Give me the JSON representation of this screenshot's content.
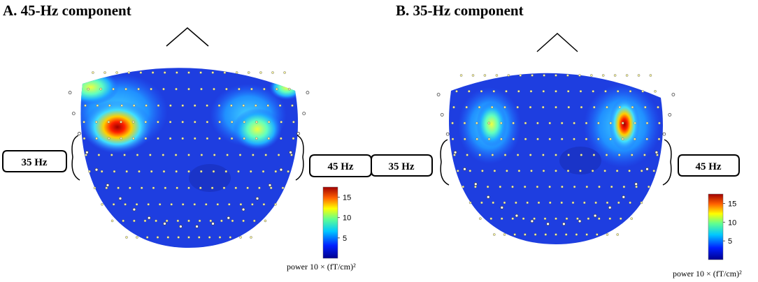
{
  "panels": [
    {
      "title": "A. 45-Hz component",
      "left_label": "35 Hz",
      "right_label": "45 Hz",
      "colorbar": {
        "range": [
          0,
          17.5
        ],
        "ticks": [
          5,
          10,
          15
        ],
        "label": "power 10 × (fT/cm)²"
      }
    },
    {
      "title": "B. 35-Hz component",
      "left_label": "35 Hz",
      "right_label": "45 Hz",
      "colorbar": {
        "range": [
          0,
          17.5
        ],
        "ticks": [
          5,
          10,
          15
        ],
        "label": "power 10 × (fT/cm)²"
      }
    }
  ]
}
